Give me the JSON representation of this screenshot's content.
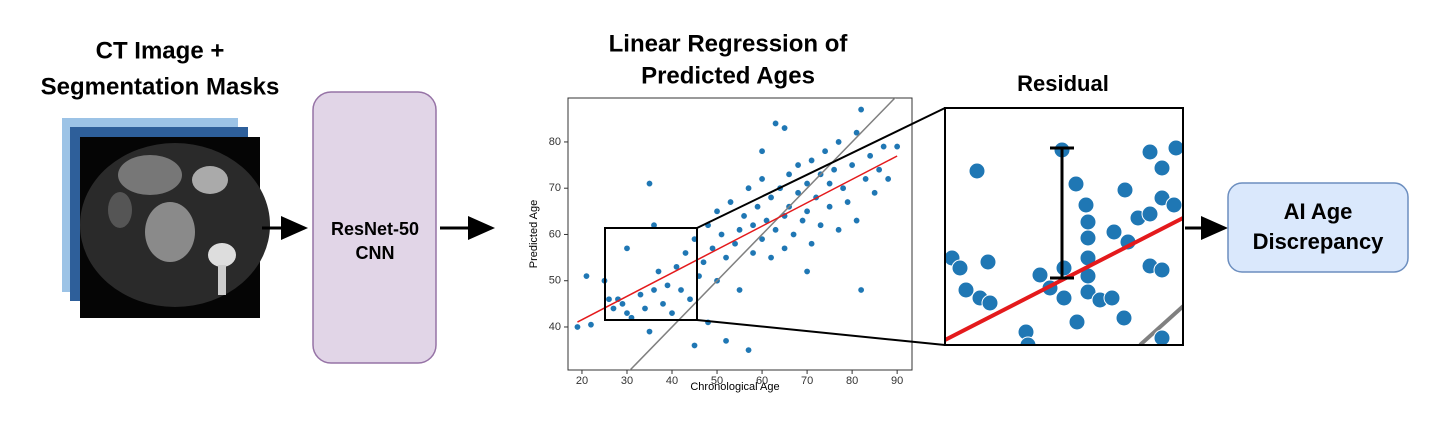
{
  "ct_title": [
    "CT Image +",
    "Segmentation Masks"
  ],
  "model": [
    "ResNet-50",
    "CNN"
  ],
  "residual_title": "Residual",
  "output": [
    "AI Age",
    "Discrepancy"
  ],
  "chart_data": {
    "type": "scatter",
    "title": [
      "Linear Regression of",
      "Predicted Ages"
    ],
    "x_label": "Chronological Age",
    "y_label": "Predicted Age",
    "color": "#1f77b4",
    "x": [
      19,
      21,
      22,
      25,
      26,
      27,
      28,
      29,
      30,
      31,
      33,
      34,
      35,
      35,
      36,
      37,
      38,
      39,
      40,
      41,
      42,
      43,
      44,
      45,
      46,
      47,
      48,
      49,
      50,
      50,
      51,
      52,
      53,
      54,
      55,
      55,
      56,
      57,
      58,
      58,
      59,
      60,
      60,
      61,
      62,
      62,
      63,
      63,
      64,
      65,
      65,
      66,
      66,
      67,
      68,
      68,
      69,
      70,
      70,
      71,
      71,
      72,
      73,
      73,
      74,
      75,
      75,
      76,
      77,
      77,
      78,
      79,
      80,
      81,
      81,
      82,
      82,
      83,
      84,
      85,
      86,
      87,
      88,
      90,
      45,
      57,
      52,
      48,
      65,
      60,
      70,
      30,
      36
    ],
    "y": [
      40,
      51,
      40.5,
      50,
      46,
      44,
      46,
      45,
      43,
      42,
      47,
      44,
      39,
      71,
      48,
      52,
      45,
      49,
      43,
      53,
      48,
      56,
      46,
      59,
      51,
      54,
      62,
      57,
      50,
      65,
      60,
      55,
      67,
      58,
      61,
      48,
      64,
      70,
      56,
      62,
      66,
      59,
      72,
      63,
      68,
      55,
      84,
      61,
      70,
      64,
      57,
      73,
      66,
      60,
      69,
      75,
      63,
      71,
      65,
      76,
      58,
      68,
      73,
      62,
      78,
      66,
      71,
      74,
      61,
      80,
      70,
      67,
      75,
      63,
      82,
      87,
      48,
      72,
      77,
      69,
      74,
      79,
      72,
      79,
      36,
      35,
      37,
      41,
      83,
      78,
      52,
      57,
      62
    ],
    "xlim": [
      16.9,
      93.3
    ],
    "ylim": [
      30.7,
      89.5
    ],
    "xticks": [
      20,
      30,
      40,
      50,
      60,
      70,
      80,
      90
    ],
    "yticks": [
      40,
      50,
      60,
      70,
      80
    ]
  }
}
